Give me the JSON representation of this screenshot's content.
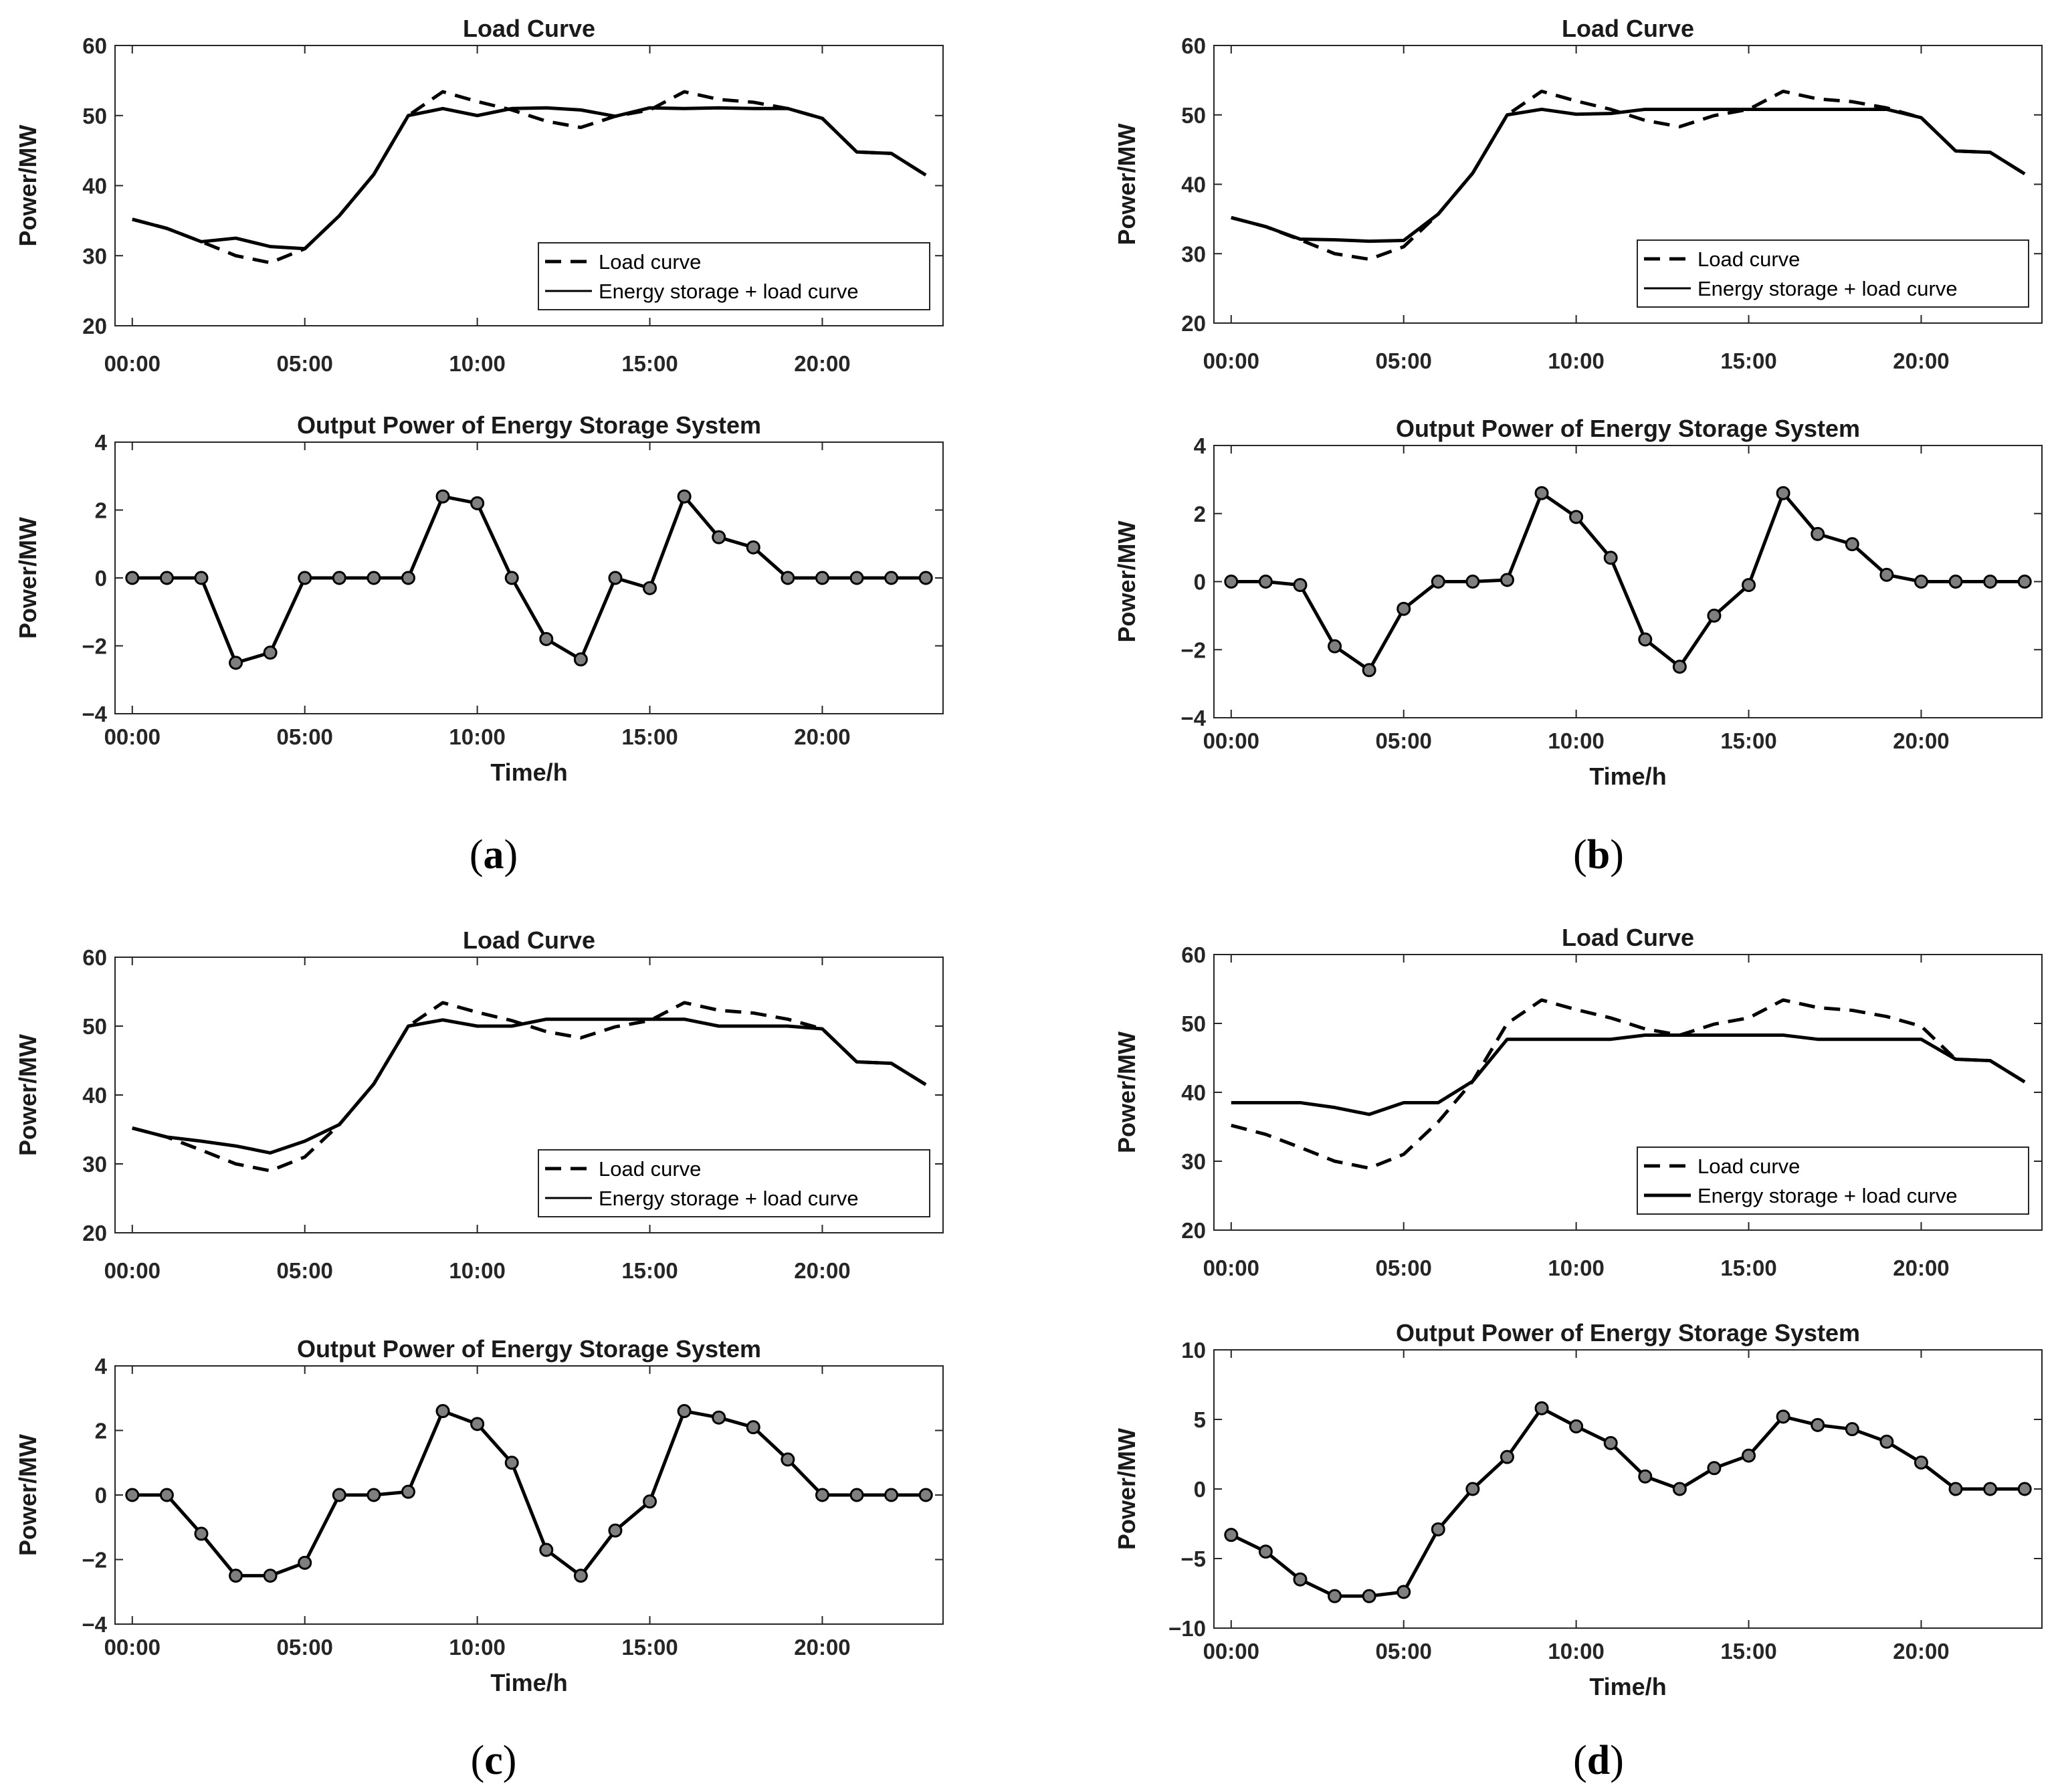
{
  "panels": [
    {
      "label": "a",
      "load": {
        "title": "Load Curve",
        "ylabel": "Power/MW",
        "ylim": [
          20,
          60
        ],
        "yticks": [
          20,
          30,
          40,
          50,
          60
        ],
        "legend": [
          "Load curve",
          "Energy storage + load curve"
        ]
      },
      "ess": {
        "title": "Output Power of Energy Storage System",
        "ylabel": "Power/MW",
        "xlabel": "Time/h",
        "ylim": [
          -4,
          4
        ],
        "yticks": [
          -4,
          -2,
          0,
          2,
          4
        ]
      }
    },
    {
      "label": "b",
      "load": {
        "title": "Load Curve",
        "ylabel": "Power/MW",
        "ylim": [
          20,
          60
        ],
        "yticks": [
          20,
          30,
          40,
          50,
          60
        ],
        "legend": [
          "Load curve",
          "Energy storage + load curve"
        ]
      },
      "ess": {
        "title": "Output Power of Energy Storage System",
        "ylabel": "Power/MW",
        "xlabel": "Time/h",
        "ylim": [
          -4,
          4
        ],
        "yticks": [
          -4,
          -2,
          0,
          2,
          4
        ]
      }
    },
    {
      "label": "c",
      "load": {
        "title": "Load Curve",
        "ylabel": "Power/MW",
        "ylim": [
          20,
          60
        ],
        "yticks": [
          20,
          30,
          40,
          50,
          60
        ],
        "legend": [
          "Load curve",
          "Energy storage + load curve"
        ]
      },
      "ess": {
        "title": "Output Power of Energy Storage System",
        "ylabel": "Power/MW",
        "xlabel": "Time/h",
        "ylim": [
          -4,
          4
        ],
        "yticks": [
          -4,
          -2,
          0,
          2,
          4
        ]
      }
    },
    {
      "label": "d",
      "load": {
        "title": "Load Curve",
        "ylabel": "Power/MW",
        "ylim": [
          20,
          60
        ],
        "yticks": [
          20,
          30,
          40,
          50,
          60
        ],
        "legend": [
          "Load curve",
          "Energy storage + load curve"
        ]
      },
      "ess": {
        "title": "Output Power of Energy Storage System",
        "ylabel": "Power/MW",
        "xlabel": "Time/h",
        "ylim": [
          -10,
          10
        ],
        "yticks": [
          -10,
          -5,
          0,
          5,
          10
        ]
      }
    }
  ],
  "chart_data": [
    {
      "panel": "a",
      "type": "line",
      "title": "Load Curve",
      "xlabel": "",
      "ylabel": "Power/MW",
      "x": [
        0,
        1,
        2,
        3,
        4,
        5,
        6,
        7,
        8,
        9,
        10,
        11,
        12,
        13,
        14,
        15,
        16,
        17,
        18,
        19,
        20,
        21,
        22,
        23
      ],
      "x_ticks": [
        "00:00",
        "05:00",
        "10:00",
        "15:00",
        "20:00"
      ],
      "x_tick_positions": [
        0,
        5,
        10,
        15,
        20
      ],
      "xlim": [
        -0.5,
        23.5
      ],
      "ylim": [
        20,
        60
      ],
      "legend_location": "lower-right",
      "series": [
        {
          "name": "Load curve",
          "style": "dashed",
          "values": [
            35.2,
            33.9,
            32,
            30,
            29,
            31,
            35.7,
            41.6,
            50,
            53.4,
            52,
            50.8,
            49.2,
            48.3,
            49.9,
            50.8,
            53.4,
            52.3,
            51.9,
            51,
            49.6,
            44.8,
            44.6,
            41.5
          ]
        },
        {
          "name": "Energy storage + load curve",
          "style": "solid",
          "values": [
            35.2,
            33.9,
            32,
            32.5,
            31.3,
            31,
            35.7,
            41.6,
            50,
            51,
            50,
            51,
            51.1,
            50.8,
            49.9,
            51.1,
            51,
            51.1,
            51,
            51,
            49.6,
            44.8,
            44.6,
            41.5
          ]
        }
      ]
    },
    {
      "panel": "a",
      "type": "line",
      "title": "Output Power of Energy Storage System",
      "xlabel": "Time/h",
      "ylabel": "Power/MW",
      "x": [
        0,
        1,
        2,
        3,
        4,
        5,
        6,
        7,
        8,
        9,
        10,
        11,
        12,
        13,
        14,
        15,
        16,
        17,
        18,
        19,
        20,
        21,
        22,
        23
      ],
      "x_ticks": [
        "00:00",
        "05:00",
        "10:00",
        "15:00",
        "20:00"
      ],
      "x_tick_positions": [
        0,
        5,
        10,
        15,
        20
      ],
      "xlim": [
        -0.5,
        23.5
      ],
      "ylim": [
        -4,
        4
      ],
      "markers": true,
      "series": [
        {
          "name": "Output power",
          "values": [
            0,
            0,
            0,
            -2.5,
            -2.2,
            0,
            0,
            0,
            0,
            2.4,
            2.2,
            0,
            -1.8,
            -2.4,
            0,
            -0.3,
            2.4,
            1.2,
            0.9,
            0,
            0,
            0,
            0,
            0
          ]
        }
      ]
    },
    {
      "panel": "b",
      "type": "line",
      "title": "Load Curve",
      "xlabel": "",
      "ylabel": "Power/MW",
      "x": [
        0,
        1,
        2,
        3,
        4,
        5,
        6,
        7,
        8,
        9,
        10,
        11,
        12,
        13,
        14,
        15,
        16,
        17,
        18,
        19,
        20,
        21,
        22,
        23
      ],
      "x_ticks": [
        "00:00",
        "05:00",
        "10:00",
        "15:00",
        "20:00"
      ],
      "x_tick_positions": [
        0,
        5,
        10,
        15,
        20
      ],
      "xlim": [
        -0.5,
        23.5
      ],
      "ylim": [
        20,
        60
      ],
      "legend_location": "lower-right",
      "series": [
        {
          "name": "Load curve",
          "style": "dashed",
          "values": [
            35.2,
            33.9,
            32,
            30,
            29.2,
            31,
            35.7,
            41.6,
            50,
            53.4,
            52,
            50.8,
            49.2,
            48.3,
            49.9,
            50.8,
            53.4,
            52.3,
            51.9,
            51,
            49.6,
            44.8,
            44.6,
            41.5
          ]
        },
        {
          "name": "Energy storage + load curve",
          "style": "solid",
          "values": [
            35.2,
            33.9,
            32.1,
            32,
            31.8,
            31.9,
            35.7,
            41.6,
            50,
            50.8,
            50.1,
            50.2,
            50.8,
            50.8,
            50.8,
            50.8,
            50.8,
            50.8,
            50.8,
            50.8,
            49.6,
            44.8,
            44.6,
            41.5
          ]
        }
      ]
    },
    {
      "panel": "b",
      "type": "line",
      "title": "Output Power of Energy Storage System",
      "xlabel": "Time/h",
      "ylabel": "Power/MW",
      "x": [
        0,
        1,
        2,
        3,
        4,
        5,
        6,
        7,
        8,
        9,
        10,
        11,
        12,
        13,
        14,
        15,
        16,
        17,
        18,
        19,
        20,
        21,
        22,
        23
      ],
      "x_ticks": [
        "00:00",
        "05:00",
        "10:00",
        "15:00",
        "20:00"
      ],
      "x_tick_positions": [
        0,
        5,
        10,
        15,
        20
      ],
      "xlim": [
        -0.5,
        23.5
      ],
      "ylim": [
        -4,
        4
      ],
      "markers": true,
      "series": [
        {
          "name": "Output power",
          "values": [
            0,
            0,
            -0.1,
            -1.9,
            -2.6,
            -0.8,
            0,
            0,
            0.05,
            2.6,
            1.9,
            0.7,
            -1.7,
            -2.5,
            -1,
            -0.1,
            2.6,
            1.4,
            1.1,
            0.2,
            0,
            0,
            0,
            0
          ]
        }
      ]
    },
    {
      "panel": "c",
      "type": "line",
      "title": "Load Curve",
      "xlabel": "",
      "ylabel": "Power/MW",
      "x": [
        0,
        1,
        2,
        3,
        4,
        5,
        6,
        7,
        8,
        9,
        10,
        11,
        12,
        13,
        14,
        15,
        16,
        17,
        18,
        19,
        20,
        21,
        22,
        23
      ],
      "x_ticks": [
        "00:00",
        "05:00",
        "10:00",
        "15:00",
        "20:00"
      ],
      "x_tick_positions": [
        0,
        5,
        10,
        15,
        20
      ],
      "xlim": [
        -0.5,
        23.5
      ],
      "ylim": [
        20,
        60
      ],
      "legend_location": "lower-right",
      "series": [
        {
          "name": "Load curve",
          "style": "dashed",
          "values": [
            35.2,
            33.9,
            32,
            30,
            29,
            31,
            35.7,
            41.6,
            50,
            53.4,
            52,
            50.8,
            49.2,
            48.3,
            49.9,
            50.8,
            53.4,
            52.3,
            51.9,
            51,
            49.6,
            44.8,
            44.6,
            41.5
          ]
        },
        {
          "name": "Energy storage + load curve",
          "style": "solid",
          "values": [
            35.2,
            33.9,
            33.3,
            32.6,
            31.6,
            33.3,
            35.7,
            41.6,
            50,
            50.9,
            50,
            50,
            51,
            51,
            51,
            51,
            51,
            50,
            50,
            50,
            49.6,
            44.8,
            44.6,
            41.5
          ]
        }
      ]
    },
    {
      "panel": "c",
      "type": "line",
      "title": "Output Power of Energy Storage System",
      "xlabel": "Time/h",
      "ylabel": "Power/MW",
      "x": [
        0,
        1,
        2,
        3,
        4,
        5,
        6,
        7,
        8,
        9,
        10,
        11,
        12,
        13,
        14,
        15,
        16,
        17,
        18,
        19,
        20,
        21,
        22,
        23
      ],
      "x_ticks": [
        "00:00",
        "05:00",
        "10:00",
        "15:00",
        "20:00"
      ],
      "x_tick_positions": [
        0,
        5,
        10,
        15,
        20
      ],
      "xlim": [
        -0.5,
        23.5
      ],
      "ylim": [
        -4,
        4
      ],
      "markers": true,
      "series": [
        {
          "name": "Output power",
          "values": [
            0,
            0,
            -1.2,
            -2.5,
            -2.5,
            -2.1,
            0,
            0,
            0.1,
            2.6,
            2.2,
            1,
            -1.7,
            -2.5,
            -1.1,
            -0.2,
            2.6,
            2.4,
            2.1,
            1.1,
            0,
            0,
            0,
            0
          ]
        }
      ]
    },
    {
      "panel": "d",
      "type": "line",
      "title": "Load Curve",
      "xlabel": "",
      "ylabel": "Power/MW",
      "x": [
        0,
        1,
        2,
        3,
        4,
        5,
        6,
        7,
        8,
        9,
        10,
        11,
        12,
        13,
        14,
        15,
        16,
        17,
        18,
        19,
        20,
        21,
        22,
        23
      ],
      "x_ticks": [
        "00:00",
        "05:00",
        "10:00",
        "15:00",
        "20:00"
      ],
      "x_tick_positions": [
        0,
        5,
        10,
        15,
        20
      ],
      "xlim": [
        -0.5,
        23.5
      ],
      "ylim": [
        20,
        60
      ],
      "legend_location": "lower-right",
      "series": [
        {
          "name": "Load curve",
          "style": "dashed",
          "values": [
            35.2,
            33.9,
            32,
            30,
            29,
            31,
            35.7,
            41.6,
            50,
            53.4,
            52,
            50.8,
            49.2,
            48.3,
            49.9,
            50.8,
            53.4,
            52.3,
            51.9,
            51,
            49.6,
            44.8,
            44.6,
            41.5
          ]
        },
        {
          "name": "Energy storage + load curve",
          "style": "solid",
          "values": [
            38.5,
            38.5,
            38.5,
            37.8,
            36.8,
            38.5,
            38.5,
            41.6,
            47.7,
            47.7,
            47.7,
            47.7,
            48.3,
            48.3,
            48.3,
            48.3,
            48.3,
            47.7,
            47.7,
            47.7,
            47.7,
            44.8,
            44.6,
            41.5
          ]
        }
      ]
    },
    {
      "panel": "d",
      "type": "line",
      "title": "Output Power of Energy Storage System",
      "xlabel": "Time/h",
      "ylabel": "Power/MW",
      "x": [
        0,
        1,
        2,
        3,
        4,
        5,
        6,
        7,
        8,
        9,
        10,
        11,
        12,
        13,
        14,
        15,
        16,
        17,
        18,
        19,
        20,
        21,
        22,
        23
      ],
      "x_ticks": [
        "00:00",
        "05:00",
        "10:00",
        "15:00",
        "20:00"
      ],
      "x_tick_positions": [
        0,
        5,
        10,
        15,
        20
      ],
      "xlim": [
        -0.5,
        23.5
      ],
      "ylim": [
        -10,
        10
      ],
      "markers": true,
      "series": [
        {
          "name": "Output power",
          "values": [
            -3.3,
            -4.5,
            -6.5,
            -7.7,
            -7.7,
            -7.4,
            -2.9,
            0,
            2.3,
            5.8,
            4.5,
            3.3,
            0.9,
            0,
            1.5,
            2.4,
            5.2,
            4.6,
            4.3,
            3.4,
            1.9,
            0,
            0,
            0
          ]
        }
      ]
    }
  ]
}
